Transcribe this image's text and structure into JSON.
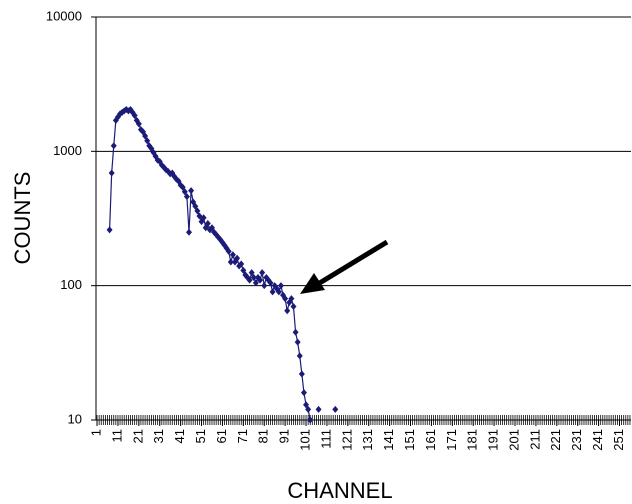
{
  "chart_data": {
    "type": "line",
    "x_label": "CHANNEL",
    "y_label": "COUNTS",
    "x": [
      7,
      8,
      9,
      10,
      11,
      12,
      13,
      14,
      15,
      16,
      17,
      18,
      19,
      20,
      21,
      22,
      23,
      24,
      25,
      26,
      27,
      28,
      29,
      30,
      31,
      32,
      33,
      34,
      35,
      36,
      37,
      38,
      39,
      40,
      41,
      42,
      43,
      44,
      45,
      46,
      47,
      48,
      49,
      50,
      51,
      52,
      53,
      54,
      55,
      56,
      57,
      58,
      59,
      60,
      61,
      62,
      63,
      64,
      65,
      66,
      67,
      68,
      69,
      70,
      71,
      72,
      73,
      74,
      75,
      76,
      77,
      78,
      79,
      80,
      81,
      82,
      83,
      84,
      85,
      86,
      87,
      88,
      89,
      90,
      91,
      92,
      93,
      94,
      95,
      96,
      97,
      98,
      99,
      100,
      101,
      102,
      103,
      104,
      107,
      109,
      115
    ],
    "series": [
      {
        "name": "COUNTS",
        "color": "#1c1c78",
        "values": [
          260,
          690,
          1100,
          1700,
          1800,
          1900,
          1950,
          2000,
          2050,
          2000,
          2050,
          1950,
          1850,
          1700,
          1600,
          1450,
          1400,
          1300,
          1200,
          1100,
          1050,
          980,
          920,
          860,
          840,
          790,
          760,
          730,
          710,
          680,
          690,
          650,
          620,
          600,
          560,
          540,
          500,
          460,
          250,
          510,
          420,
          390,
          360,
          330,
          300,
          320,
          270,
          290,
          260,
          270,
          250,
          240,
          230,
          220,
          210,
          200,
          190,
          180,
          150,
          170,
          150,
          160,
          140,
          145,
          130,
          120,
          115,
          110,
          125,
          115,
          105,
          115,
          110,
          125,
          100,
          115,
          110,
          105,
          90,
          100,
          95,
          90,
          100,
          85,
          80,
          65,
          75,
          80,
          70,
          45,
          38,
          30,
          22,
          16,
          13,
          12,
          10,
          null,
          12,
          null,
          12
        ]
      }
    ],
    "xlim": [
      0.5,
      256.5
    ],
    "xticks": [
      1,
      11,
      21,
      31,
      41,
      51,
      61,
      71,
      81,
      91,
      101,
      111,
      121,
      131,
      141,
      151,
      161,
      171,
      181,
      191,
      201,
      211,
      221,
      231,
      241,
      251
    ],
    "ylim": [
      10,
      10000
    ],
    "yticks": [
      10,
      100,
      1000,
      10000
    ],
    "yscale": "log",
    "grid": true
  }
}
